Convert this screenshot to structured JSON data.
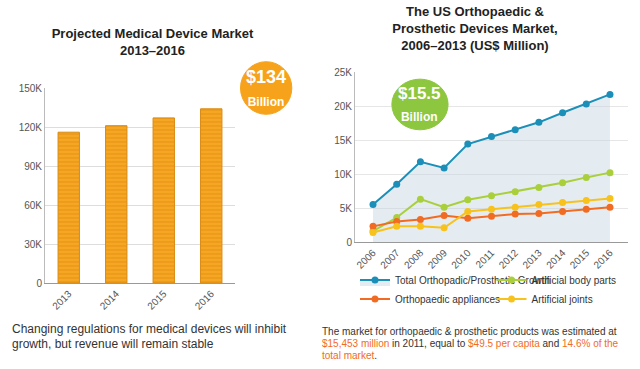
{
  "chart_data": [
    {
      "type": "bar",
      "title": "Projected Medical Device Market\n2013–2016",
      "categories": [
        "2013",
        "2014",
        "2015",
        "2016"
      ],
      "values": [
        116000,
        121000,
        127000,
        134000
      ],
      "color": "#f5a623",
      "ylim": [
        0,
        150000
      ],
      "yticks": [
        0,
        {
          "value": 30000,
          "label": "30K"
        },
        {
          "value": 60000,
          "label": "60K"
        },
        {
          "value": 90000,
          "label": "90K"
        },
        {
          "value": 120000,
          "label": "120K"
        },
        {
          "value": 150000,
          "label": "150K"
        }
      ],
      "grid": true,
      "annotations": [
        "$134\nBillion"
      ],
      "caption": "Changing regulations for medical devices will inhibit growth, but revenue will remain stable"
    },
    {
      "type": "line",
      "title": "The US Orthopaedic &\nProsthetic Devices Market,\n2006–2013 (US$ Million)",
      "categories": [
        "2006",
        "2007",
        "2008",
        "2009",
        "2010",
        "2011",
        "2012",
        "2013",
        "2014",
        "2015",
        "2016"
      ],
      "series": [
        {
          "name": "Total Orthopadic/Prosthetic Growth",
          "color": "#1b8fb8",
          "type": "area",
          "values": [
            5500,
            8500,
            11800,
            10900,
            14400,
            15500,
            16500,
            17600,
            19000,
            20300,
            21700
          ]
        },
        {
          "name": "Artificial body parts",
          "color": "#a9cf3b",
          "type": "line",
          "values": [
            1600,
            3600,
            6300,
            5100,
            6200,
            6800,
            7400,
            8000,
            8700,
            9500,
            10200
          ]
        },
        {
          "name": "Orthopaedic appliances",
          "color": "#f26b22",
          "type": "line",
          "values": [
            2300,
            3000,
            3300,
            3900,
            3500,
            3800,
            4100,
            4200,
            4500,
            4800,
            5100
          ]
        },
        {
          "name": "Artificial joints",
          "color": "#f7c21b",
          "type": "line",
          "values": [
            1400,
            2300,
            2300,
            2100,
            4500,
            4800,
            5100,
            5500,
            5800,
            6100,
            6400
          ]
        }
      ],
      "ylim": [
        0,
        25000
      ],
      "yticks": [
        0,
        {
          "value": 5000,
          "label": "5K"
        },
        {
          "value": 10000,
          "label": "10K"
        },
        {
          "value": 15000,
          "label": "15K"
        },
        {
          "value": 20000,
          "label": "20K"
        },
        {
          "value": 25000,
          "label": "25K"
        }
      ],
      "grid": true,
      "legend": "bottom",
      "marker": "circle",
      "annotations": [
        "$15.5\nBillion"
      ],
      "note": "The market for orthopaedic & prosthetic products was estimated at $15,453 million in 2011, equal to $49.5 per capita and 14.6% of the total market."
    }
  ]
}
